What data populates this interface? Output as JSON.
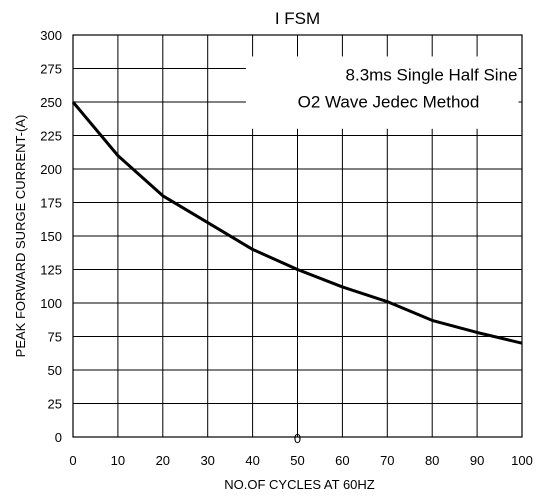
{
  "chart_data": {
    "type": "line",
    "title": "I FSM",
    "xlabel": "NO.OF CYCLES AT 60HZ",
    "ylabel": "PEAK FORWARD SURGE CURRENT-(A)",
    "xlim": [
      0,
      100
    ],
    "ylim": [
      0,
      300
    ],
    "xticks": [
      "0",
      "10",
      "20",
      "30",
      "40",
      "50",
      "60",
      "70",
      "80",
      "90",
      "100"
    ],
    "yticks": [
      "0",
      "25",
      "50",
      "75",
      "100",
      "125",
      "150",
      "175",
      "200",
      "225",
      "250",
      "275",
      "300"
    ],
    "grid": true,
    "annotation_lines": [
      "8.3ms Single Half Sine",
      "O2 Wave Jedec Method"
    ],
    "stray_label": "0",
    "series": [
      {
        "x": [
          0,
          10,
          20,
          30,
          40,
          50,
          60,
          70,
          80,
          90,
          100
        ],
        "values": [
          250,
          210,
          180,
          160,
          140,
          125,
          112,
          101,
          87,
          78,
          70
        ]
      }
    ],
    "colors": {
      "line": "#000000",
      "grid": "#000000",
      "background": "#ffffff"
    }
  }
}
